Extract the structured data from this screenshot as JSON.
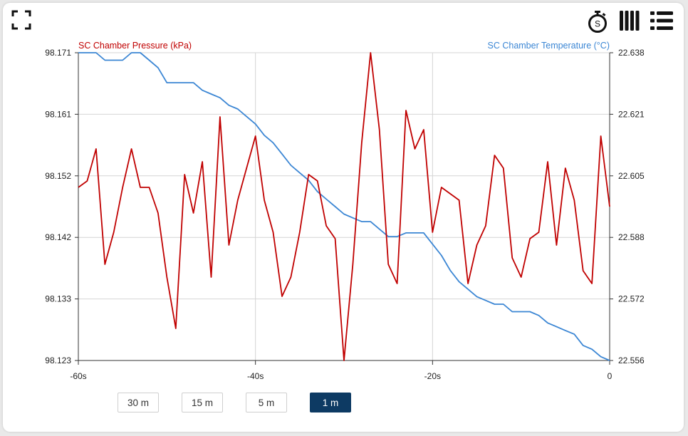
{
  "toolbar": {
    "fullscreen_icon": "fullscreen-icon",
    "stopwatch_icon": "stopwatch-icon",
    "stopwatch_letter": "S",
    "columns_icon": "columns-icon",
    "list_icon": "list-icon"
  },
  "range_buttons": [
    {
      "label": "30 m",
      "active": false
    },
    {
      "label": "15 m",
      "active": false
    },
    {
      "label": "5 m",
      "active": false
    },
    {
      "label": "1 m",
      "active": true
    }
  ],
  "colors": {
    "pressure": "#c00000",
    "temperature": "#3b86d4",
    "grid": "#d4d4d4",
    "active_button": "#0d3a63"
  },
  "chart_data": {
    "type": "line",
    "grid": true,
    "x_ticks": [
      "-60s",
      "-40s",
      "-20s",
      "0"
    ],
    "xlim": [
      -60,
      0
    ],
    "left_axis": {
      "label": "SC Chamber Pressure (kPa)",
      "ylim": [
        98.123,
        98.171
      ],
      "ticks": [
        "98.171",
        "98.161",
        "98.152",
        "98.142",
        "98.133",
        "98.123"
      ]
    },
    "right_axis": {
      "label": "SC Chamber Temperature (°C)",
      "ylim": [
        22.556,
        22.638
      ],
      "ticks": [
        "22.638",
        "22.621",
        "22.605",
        "22.588",
        "22.572",
        "22.556"
      ]
    },
    "series": [
      {
        "name": "SC Chamber Pressure (kPa)",
        "axis": "left",
        "x": [
          -60,
          -59,
          -58,
          -57,
          -56,
          -55,
          -54,
          -53,
          -52,
          -51,
          -50,
          -49,
          -48,
          -47,
          -46,
          -45,
          -44,
          -43,
          -42,
          -41,
          -40,
          -39,
          -38,
          -37,
          -36,
          -35,
          -34,
          -33,
          -32,
          -31,
          -30,
          -29,
          -28,
          -27,
          -26,
          -25,
          -24,
          -23,
          -22,
          -21,
          -20,
          -19,
          -18,
          -17,
          -16,
          -15,
          -14,
          -13,
          -12,
          -11,
          -10,
          -9,
          -8,
          -7,
          -6,
          -5,
          -4,
          -3,
          -2,
          -1,
          0
        ],
        "values": [
          98.15,
          98.151,
          98.156,
          98.138,
          98.143,
          98.15,
          98.156,
          98.15,
          98.15,
          98.146,
          98.136,
          98.128,
          98.152,
          98.146,
          98.154,
          98.136,
          98.161,
          98.141,
          98.148,
          98.153,
          98.158,
          98.148,
          98.143,
          98.133,
          98.136,
          98.143,
          98.152,
          98.151,
          98.144,
          98.142,
          98.123,
          98.138,
          98.157,
          98.171,
          98.159,
          98.138,
          98.135,
          98.162,
          98.156,
          98.159,
          98.143,
          98.15,
          98.149,
          98.148,
          98.135,
          98.141,
          98.144,
          98.155,
          98.153,
          98.139,
          98.136,
          98.142,
          98.143,
          98.154,
          98.141,
          98.153,
          98.148,
          98.137,
          98.135,
          98.158,
          98.147
        ]
      },
      {
        "name": "SC Chamber Temperature (°C)",
        "axis": "right",
        "x": [
          -60,
          -59,
          -58,
          -57,
          -56,
          -55,
          -54,
          -53,
          -52,
          -51,
          -50,
          -49,
          -48,
          -47,
          -46,
          -45,
          -44,
          -43,
          -42,
          -41,
          -40,
          -39,
          -38,
          -37,
          -36,
          -35,
          -34,
          -33,
          -32,
          -31,
          -30,
          -29,
          -28,
          -27,
          -26,
          -25,
          -24,
          -23,
          -22,
          -21,
          -20,
          -19,
          -18,
          -17,
          -16,
          -15,
          -14,
          -13,
          -12,
          -11,
          -10,
          -9,
          -8,
          -7,
          -6,
          -5,
          -4,
          -3,
          -2,
          -1,
          0
        ],
        "values": [
          22.638,
          22.638,
          22.638,
          22.636,
          22.636,
          22.636,
          22.638,
          22.638,
          22.636,
          22.634,
          22.63,
          22.63,
          22.63,
          22.63,
          22.628,
          22.627,
          22.626,
          22.624,
          22.623,
          22.621,
          22.619,
          22.616,
          22.614,
          22.611,
          22.608,
          22.606,
          22.604,
          22.601,
          22.599,
          22.597,
          22.595,
          22.594,
          22.593,
          22.593,
          22.591,
          22.589,
          22.589,
          22.59,
          22.59,
          22.59,
          22.587,
          22.584,
          22.58,
          22.577,
          22.575,
          22.573,
          22.572,
          22.571,
          22.571,
          22.569,
          22.569,
          22.569,
          22.568,
          22.566,
          22.565,
          22.564,
          22.563,
          22.56,
          22.559,
          22.557,
          22.556
        ]
      }
    ]
  }
}
